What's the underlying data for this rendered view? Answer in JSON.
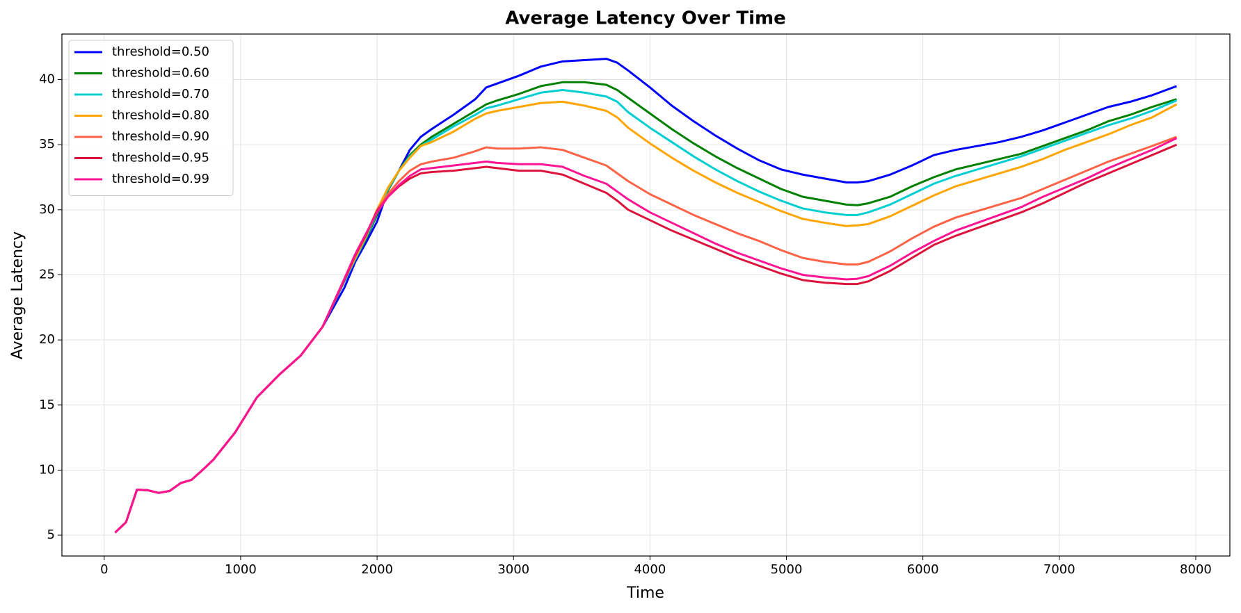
{
  "chart_data": {
    "type": "line",
    "title": "Average Latency Over Time",
    "x_label": "Time",
    "y_label": "Average Latency",
    "xlim": [
      -310,
      8250
    ],
    "ylim": [
      3.4,
      43.5
    ],
    "xticks": [
      0,
      1000,
      2000,
      3000,
      4000,
      5000,
      6000,
      7000,
      8000
    ],
    "yticks": [
      5,
      10,
      15,
      20,
      25,
      30,
      35,
      40
    ],
    "grid": true,
    "legend": "upper left",
    "x": [
      80,
      160,
      240,
      320,
      400,
      480,
      560,
      640,
      720,
      800,
      960,
      1120,
      1280,
      1440,
      1600,
      1760,
      1840,
      1920,
      2000,
      2080,
      2160,
      2240,
      2320,
      2400,
      2560,
      2720,
      2800,
      2880,
      3040,
      3200,
      3360,
      3520,
      3680,
      3760,
      3840,
      4000,
      4160,
      4320,
      4480,
      4640,
      4800,
      4960,
      5120,
      5280,
      5440,
      5520,
      5600,
      5760,
      5920,
      6080,
      6240,
      6400,
      6560,
      6720,
      6880,
      7040,
      7200,
      7360,
      7520,
      7680,
      7860
    ],
    "series": [
      {
        "name": "threshold=0.50",
        "color": "#0000ff",
        "values": [
          5.2,
          6.0,
          8.5,
          8.45,
          8.25,
          8.4,
          9.0,
          9.25,
          10.0,
          10.8,
          12.9,
          15.6,
          17.3,
          18.8,
          21.0,
          24.0,
          26.0,
          27.5,
          29.1,
          31.5,
          33.0,
          34.6,
          35.6,
          36.2,
          37.3,
          38.5,
          39.4,
          39.7,
          40.3,
          41.0,
          41.4,
          41.5,
          41.6,
          41.3,
          40.7,
          39.4,
          38.0,
          36.8,
          35.7,
          34.7,
          33.8,
          33.1,
          32.7,
          32.4,
          32.1,
          32.1,
          32.2,
          32.7,
          33.4,
          34.2,
          34.6,
          34.9,
          35.2,
          35.6,
          36.1,
          36.7,
          37.3,
          37.9,
          38.3,
          38.8,
          39.5
        ]
      },
      {
        "name": "threshold=0.60",
        "color": "#008000",
        "values": [
          5.2,
          6.0,
          8.5,
          8.45,
          8.25,
          8.4,
          9.0,
          9.25,
          10.0,
          10.8,
          12.9,
          15.6,
          17.3,
          18.8,
          21.0,
          24.5,
          26.2,
          27.8,
          29.6,
          31.5,
          33.0,
          34.2,
          35.0,
          35.6,
          36.6,
          37.6,
          38.1,
          38.4,
          38.9,
          39.5,
          39.8,
          39.8,
          39.6,
          39.2,
          38.6,
          37.4,
          36.2,
          35.1,
          34.1,
          33.2,
          32.4,
          31.6,
          31.0,
          30.7,
          30.4,
          30.35,
          30.5,
          31.0,
          31.8,
          32.5,
          33.1,
          33.5,
          33.9,
          34.3,
          34.9,
          35.5,
          36.1,
          36.8,
          37.3,
          37.9,
          38.5
        ]
      },
      {
        "name": "threshold=0.70",
        "color": "#00ced1",
        "values": [
          5.2,
          6.0,
          8.5,
          8.45,
          8.25,
          8.4,
          9.0,
          9.25,
          10.0,
          10.8,
          12.9,
          15.6,
          17.3,
          18.8,
          21.0,
          24.5,
          26.2,
          27.9,
          29.8,
          31.6,
          33.0,
          34.1,
          34.9,
          35.4,
          36.4,
          37.3,
          37.8,
          38.0,
          38.5,
          39.0,
          39.2,
          39.0,
          38.7,
          38.3,
          37.5,
          36.3,
          35.2,
          34.1,
          33.1,
          32.2,
          31.4,
          30.7,
          30.1,
          29.8,
          29.6,
          29.6,
          29.8,
          30.4,
          31.2,
          32.0,
          32.6,
          33.1,
          33.6,
          34.1,
          34.7,
          35.3,
          35.9,
          36.5,
          37.0,
          37.6,
          38.4
        ]
      },
      {
        "name": "threshold=0.80",
        "color": "#ffa500",
        "values": [
          5.2,
          6.0,
          8.5,
          8.45,
          8.25,
          8.4,
          9.0,
          9.25,
          10.0,
          10.8,
          12.9,
          15.6,
          17.3,
          18.8,
          21.0,
          24.6,
          26.3,
          28.0,
          30.0,
          31.7,
          33.0,
          34.0,
          34.9,
          35.2,
          36.0,
          37.0,
          37.4,
          37.6,
          37.9,
          38.2,
          38.3,
          38.0,
          37.6,
          37.1,
          36.3,
          35.1,
          34.0,
          33.0,
          32.1,
          31.3,
          30.6,
          29.9,
          29.3,
          29.0,
          28.75,
          28.8,
          28.9,
          29.5,
          30.3,
          31.1,
          31.8,
          32.3,
          32.8,
          33.3,
          33.9,
          34.6,
          35.2,
          35.8,
          36.5,
          37.1,
          38.1
        ]
      },
      {
        "name": "threshold=0.90",
        "color": "#ff6347",
        "values": [
          5.2,
          6.0,
          8.5,
          8.45,
          8.25,
          8.4,
          9.0,
          9.25,
          10.0,
          10.8,
          12.9,
          15.6,
          17.3,
          18.8,
          21.0,
          24.6,
          26.5,
          28.1,
          30.0,
          31.2,
          32.2,
          33.0,
          33.5,
          33.7,
          34.0,
          34.5,
          34.8,
          34.7,
          34.7,
          34.8,
          34.6,
          34.0,
          33.4,
          32.8,
          32.2,
          31.2,
          30.4,
          29.6,
          28.9,
          28.2,
          27.6,
          26.9,
          26.3,
          26.0,
          25.8,
          25.8,
          26.0,
          26.8,
          27.8,
          28.7,
          29.4,
          29.9,
          30.4,
          30.9,
          31.6,
          32.3,
          33.0,
          33.7,
          34.3,
          34.9,
          35.6
        ]
      },
      {
        "name": "threshold=0.95",
        "color": "#dc143c",
        "values": [
          5.2,
          6.0,
          8.5,
          8.45,
          8.25,
          8.4,
          9.0,
          9.25,
          10.0,
          10.8,
          12.9,
          15.6,
          17.3,
          18.8,
          21.0,
          24.6,
          26.5,
          28.1,
          29.9,
          31.0,
          31.8,
          32.4,
          32.8,
          32.9,
          33.0,
          33.2,
          33.3,
          33.2,
          33.0,
          33.0,
          32.7,
          32.0,
          31.3,
          30.7,
          30.0,
          29.2,
          28.4,
          27.7,
          27.0,
          26.3,
          25.7,
          25.1,
          24.6,
          24.4,
          24.3,
          24.3,
          24.5,
          25.3,
          26.3,
          27.3,
          28.0,
          28.6,
          29.2,
          29.8,
          30.5,
          31.3,
          32.1,
          32.8,
          33.5,
          34.2,
          35.0
        ]
      },
      {
        "name": "threshold=0.99",
        "color": "#ff1493",
        "values": [
          5.2,
          6.0,
          8.5,
          8.45,
          8.25,
          8.4,
          9.0,
          9.25,
          10.0,
          10.8,
          12.9,
          15.6,
          17.3,
          18.8,
          21.0,
          24.7,
          26.6,
          28.2,
          29.8,
          31.0,
          31.9,
          32.6,
          33.1,
          33.2,
          33.4,
          33.6,
          33.7,
          33.6,
          33.5,
          33.5,
          33.3,
          32.6,
          32.0,
          31.4,
          30.8,
          29.8,
          29.0,
          28.2,
          27.4,
          26.7,
          26.1,
          25.5,
          25.0,
          24.8,
          24.65,
          24.7,
          24.9,
          25.7,
          26.7,
          27.6,
          28.4,
          29.0,
          29.6,
          30.2,
          31.0,
          31.7,
          32.4,
          33.2,
          33.9,
          34.6,
          35.5
        ]
      }
    ]
  }
}
